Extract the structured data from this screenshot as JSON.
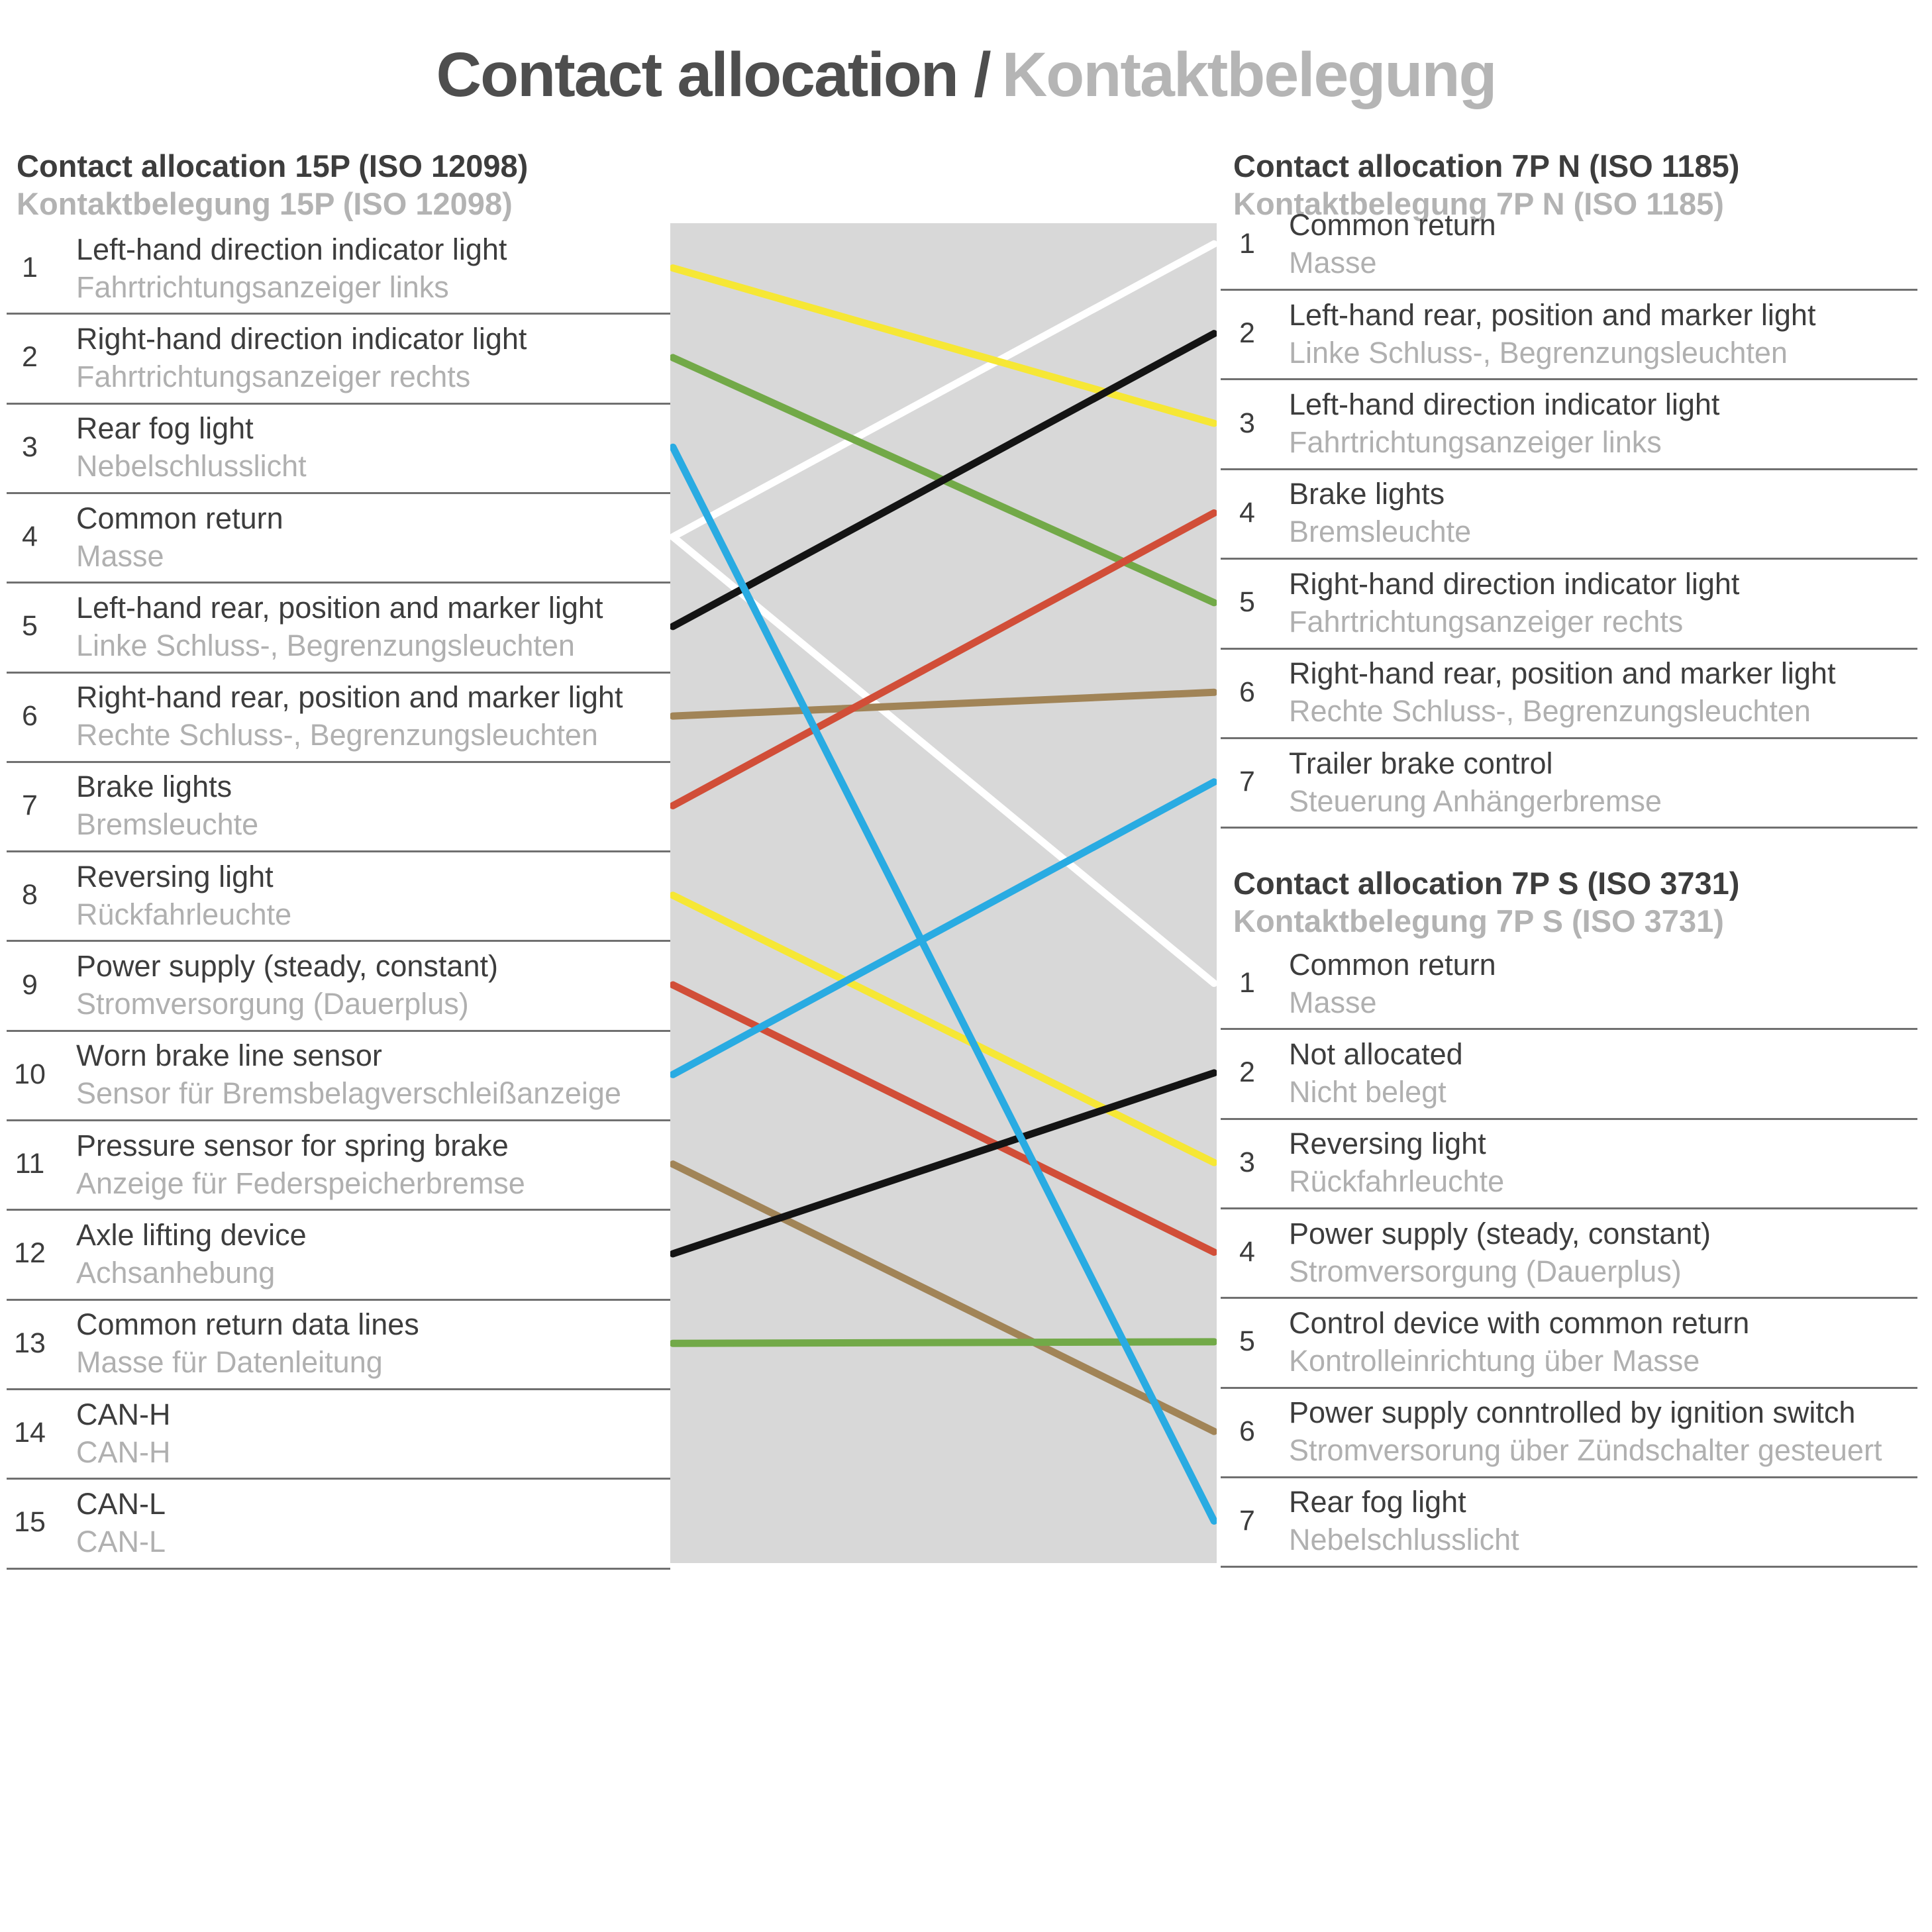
{
  "title": {
    "en": "Contact allocation /",
    "de": "Kontaktbelegung"
  },
  "left_section": {
    "title_en": "Contact allocation 15P (ISO 12098)",
    "title_de": "Kontaktbelegung 15P (ISO 12098)",
    "rows": [
      {
        "pin": "1",
        "en": "Left-hand direction indicator light",
        "de": "Fahrtrichtungsanzeiger links"
      },
      {
        "pin": "2",
        "en": "Right-hand direction indicator light",
        "de": "Fahrtrichtungsanzeiger rechts"
      },
      {
        "pin": "3",
        "en": "Rear fog light",
        "de": "Nebelschlusslicht"
      },
      {
        "pin": "4",
        "en": "Common return",
        "de": "Masse"
      },
      {
        "pin": "5",
        "en": "Left-hand rear, position and marker light",
        "de": "Linke Schluss-, Begrenzungsleuchten"
      },
      {
        "pin": "6",
        "en": "Right-hand rear, position and marker light",
        "de": "Rechte Schluss-, Begrenzungsleuchten"
      },
      {
        "pin": "7",
        "en": "Brake lights",
        "de": "Bremsleuchte"
      },
      {
        "pin": "8",
        "en": "Reversing light",
        "de": "Rückfahrleuchte"
      },
      {
        "pin": "9",
        "en": "Power supply (steady, constant)",
        "de": "Stromversorgung (Dauerplus)"
      },
      {
        "pin": "10",
        "en": "Worn brake line sensor",
        "de": "Sensor für Bremsbelagverschleißanzeige"
      },
      {
        "pin": "11",
        "en": "Pressure sensor for spring brake",
        "de": "Anzeige für Federspeicherbremse"
      },
      {
        "pin": "12",
        "en": "Axle lifting device",
        "de": "Achsanhebung"
      },
      {
        "pin": "13",
        "en": "Common return data lines",
        "de": "Masse für Datenleitung"
      },
      {
        "pin": "14",
        "en": "CAN-H",
        "de": "CAN-H"
      },
      {
        "pin": "15",
        "en": "CAN-L",
        "de": "CAN-L"
      }
    ]
  },
  "right_top_section": {
    "title_en": "Contact allocation 7P N (ISO 1185)",
    "title_de": "Kontaktbelegung 7P N (ISO 1185)",
    "rows": [
      {
        "pin": "1",
        "en": "Common return",
        "de": "Masse"
      },
      {
        "pin": "2",
        "en": "Left-hand rear, position and marker light",
        "de": "Linke Schluss-, Begrenzungsleuchten"
      },
      {
        "pin": "3",
        "en": "Left-hand direction indicator light",
        "de": "Fahrtrichtungsanzeiger links"
      },
      {
        "pin": "4",
        "en": "Brake lights",
        "de": "Bremsleuchte"
      },
      {
        "pin": "5",
        "en": "Right-hand direction indicator light",
        "de": "Fahrtrichtungsanzeiger rechts"
      },
      {
        "pin": "6",
        "en": "Right-hand rear, position and marker light",
        "de": "Rechte Schluss-, Begrenzungsleuchten"
      },
      {
        "pin": "7",
        "en": "Trailer brake control",
        "de": "Steuerung Anhängerbremse"
      }
    ]
  },
  "right_bottom_section": {
    "title_en": "Contact allocation 7P S (ISO 3731)",
    "title_de": "Kontaktbelegung 7P S (ISO 3731)",
    "rows": [
      {
        "pin": "1",
        "en": "Common return",
        "de": "Masse"
      },
      {
        "pin": "2",
        "en": "Not allocated",
        "de": "Nicht belegt"
      },
      {
        "pin": "3",
        "en": "Reversing light",
        "de": "Rückfahrleuchte"
      },
      {
        "pin": "4",
        "en": "Power supply (steady, constant)",
        "de": "Stromversorgung (Dauerplus)"
      },
      {
        "pin": "5",
        "en": "Control device with common return",
        "de": "Kontrolleinrichtung über Masse"
      },
      {
        "pin": "6",
        "en": "Power supply conntrolled by ignition switch",
        "de": "Stromversorung über Zündschalter gesteuert"
      },
      {
        "pin": "7",
        "en": "Rear fog light",
        "de": "Nebelschlusslicht"
      }
    ]
  },
  "wires": [
    {
      "from": "15P.4",
      "to": "7PN.1",
      "color": "white"
    },
    {
      "from": "15P.4",
      "to": "7PS.1",
      "color": "white"
    },
    {
      "from": "15P.6",
      "to": "7PN.6",
      "color": "brown"
    },
    {
      "from": "15P.11",
      "to": "7PS.6",
      "color": "brown"
    },
    {
      "from": "15P.13",
      "to": "7PS.5",
      "color": "green"
    },
    {
      "from": "15P.2",
      "to": "7PN.5",
      "color": "green"
    },
    {
      "from": "15P.1",
      "to": "7PN.3",
      "color": "yellow"
    },
    {
      "from": "15P.8",
      "to": "7PS.3",
      "color": "yellow"
    },
    {
      "from": "15P.7",
      "to": "7PN.4",
      "color": "red"
    },
    {
      "from": "15P.9",
      "to": "7PS.4",
      "color": "red"
    },
    {
      "from": "15P.5",
      "to": "7PN.2",
      "color": "black"
    },
    {
      "from": "15P.12",
      "to": "7PS.2",
      "color": "black"
    },
    {
      "from": "15P.10",
      "to": "7PN.7",
      "color": "blue"
    },
    {
      "from": "15P.3",
      "to": "7PS.7",
      "color": "blue"
    }
  ],
  "wire_colors": {
    "yellow": "#F6E735",
    "green": "#72A948",
    "blue": "#29ABE2",
    "white": "#FFFFFF",
    "black": "#141414",
    "brown": "#A18457",
    "red": "#D14E38"
  },
  "band_color": "#D8D8D8"
}
